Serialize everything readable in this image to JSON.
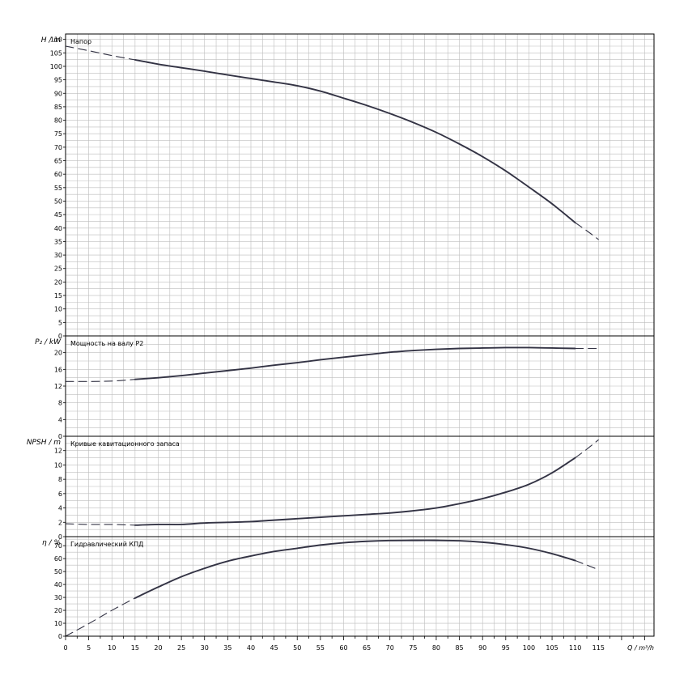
{
  "chart_data": {
    "type": "line",
    "x_axis": {
      "label": "Q / m³/h",
      "range": [
        0,
        127
      ],
      "ticks": [
        0,
        5,
        10,
        15,
        20,
        25,
        30,
        35,
        40,
        45,
        50,
        55,
        60,
        65,
        70,
        75,
        80,
        85,
        90,
        95,
        100,
        105,
        110,
        115
      ],
      "tick_labels": [
        "0",
        "5",
        "10",
        "15",
        "20",
        "25",
        "30",
        "35",
        "40",
        "45",
        "50",
        "55",
        "60",
        "65",
        "70",
        "75",
        "80",
        "85",
        "90",
        "95",
        "100",
        "105",
        "110",
        "115"
      ],
      "minor_step": 2.5
    },
    "grid": true,
    "colors": {
      "curve": "#333344",
      "grid": "#bdbdbd",
      "frame": "#000000"
    },
    "panels": [
      {
        "id": "head",
        "title": "Напор",
        "ylabel": "H / m",
        "ylim": [
          0,
          112
        ],
        "minor_step": 2.5,
        "yticks": [
          0,
          5,
          10,
          15,
          20,
          25,
          30,
          35,
          40,
          45,
          50,
          55,
          60,
          65,
          70,
          75,
          80,
          85,
          90,
          95,
          100,
          105,
          110
        ],
        "ytick_labels": [
          "0",
          "5",
          "10",
          "15",
          "20",
          "25",
          "30",
          "35",
          "40",
          "45",
          "50",
          "55",
          "60",
          "65",
          "70",
          "75",
          "80",
          "85",
          "90",
          "95",
          "100",
          "105",
          "110"
        ],
        "dashed_start": {
          "x": [
            0,
            5,
            10,
            15
          ],
          "y": [
            107.5,
            105.8,
            104.0,
            102.4
          ]
        },
        "solid": {
          "x": [
            15,
            20,
            25,
            30,
            35,
            40,
            45,
            50,
            55,
            60,
            65,
            70,
            75,
            80,
            85,
            90,
            95,
            100,
            105,
            110
          ],
          "y": [
            102.4,
            100.8,
            99.5,
            98.2,
            96.8,
            95.5,
            94.2,
            92.8,
            90.8,
            88.2,
            85.5,
            82.5,
            79.2,
            75.5,
            71.2,
            66.5,
            61.2,
            55.2,
            49.0,
            42.0
          ]
        },
        "dashed_end": {
          "x": [
            110,
            112.5,
            115
          ],
          "y": [
            42.0,
            39.0,
            35.8
          ]
        }
      },
      {
        "id": "power",
        "title": "Мощность на валу P2",
        "ylabel": "P₂ / kW",
        "ylim": [
          0,
          24
        ],
        "minor_step": 2,
        "yticks": [
          0,
          4,
          8,
          12,
          16,
          20
        ],
        "ytick_labels": [
          "0",
          "4",
          "8",
          "12",
          "16",
          "20"
        ],
        "dashed_start": {
          "x": [
            0,
            5,
            10,
            15
          ],
          "y": [
            13.1,
            13.1,
            13.2,
            13.6
          ]
        },
        "solid": {
          "x": [
            15,
            20,
            25,
            30,
            35,
            40,
            45,
            50,
            55,
            60,
            65,
            70,
            75,
            80,
            85,
            90,
            95,
            100,
            105,
            110
          ],
          "y": [
            13.6,
            14.0,
            14.5,
            15.1,
            15.7,
            16.3,
            17.0,
            17.6,
            18.3,
            18.9,
            19.5,
            20.1,
            20.5,
            20.8,
            21.0,
            21.1,
            21.2,
            21.2,
            21.1,
            21.0
          ]
        },
        "dashed_end": {
          "x": [
            110,
            115
          ],
          "y": [
            21.0,
            21.0
          ]
        }
      },
      {
        "id": "npsh",
        "title": "Кривые кавитационного запаса",
        "ylabel": "NPSH / m",
        "ylim": [
          0,
          14
        ],
        "minor_step": 1,
        "yticks": [
          0,
          2,
          4,
          6,
          8,
          10,
          12
        ],
        "ytick_labels": [
          "0",
          "2",
          "4",
          "6",
          "8",
          "10",
          "12"
        ],
        "dashed_start": {
          "x": [
            0,
            5,
            10,
            15
          ],
          "y": [
            1.8,
            1.7,
            1.7,
            1.6
          ]
        },
        "solid": {
          "x": [
            15,
            20,
            25,
            30,
            35,
            40,
            45,
            50,
            55,
            60,
            65,
            70,
            75,
            80,
            85,
            90,
            95,
            100,
            105,
            110
          ],
          "y": [
            1.6,
            1.7,
            1.7,
            1.9,
            2.0,
            2.1,
            2.3,
            2.5,
            2.7,
            2.9,
            3.1,
            3.3,
            3.6,
            4.0,
            4.6,
            5.3,
            6.2,
            7.3,
            8.9,
            11.0
          ]
        },
        "dashed_end": {
          "x": [
            110,
            112.5,
            115
          ],
          "y": [
            11.0,
            12.2,
            13.5
          ]
        }
      },
      {
        "id": "efficiency",
        "title": "Гидравлический КПД",
        "ylabel": "η / %",
        "ylim": [
          0,
          77
        ],
        "minor_step": 5,
        "yticks": [
          0,
          10,
          20,
          30,
          40,
          50,
          60,
          70
        ],
        "ytick_labels": [
          "0",
          "10",
          "20",
          "30",
          "40",
          "50",
          "60",
          "70"
        ],
        "dashed_start": {
          "x": [
            0,
            5,
            10,
            15
          ],
          "y": [
            0,
            9.7,
            20.0,
            29.5
          ]
        },
        "solid": {
          "x": [
            15,
            20,
            25,
            30,
            35,
            40,
            45,
            50,
            55,
            60,
            65,
            70,
            75,
            80,
            85,
            90,
            95,
            100,
            105,
            110
          ],
          "y": [
            29.5,
            38.0,
            46.0,
            52.5,
            58.0,
            62.0,
            65.5,
            68.0,
            70.5,
            72.3,
            73.4,
            74.0,
            74.1,
            74.1,
            73.8,
            72.7,
            70.8,
            68.0,
            63.8,
            58.5
          ]
        },
        "dashed_end": {
          "x": [
            110,
            115
          ],
          "y": [
            58.5,
            51.5
          ]
        }
      }
    ]
  }
}
